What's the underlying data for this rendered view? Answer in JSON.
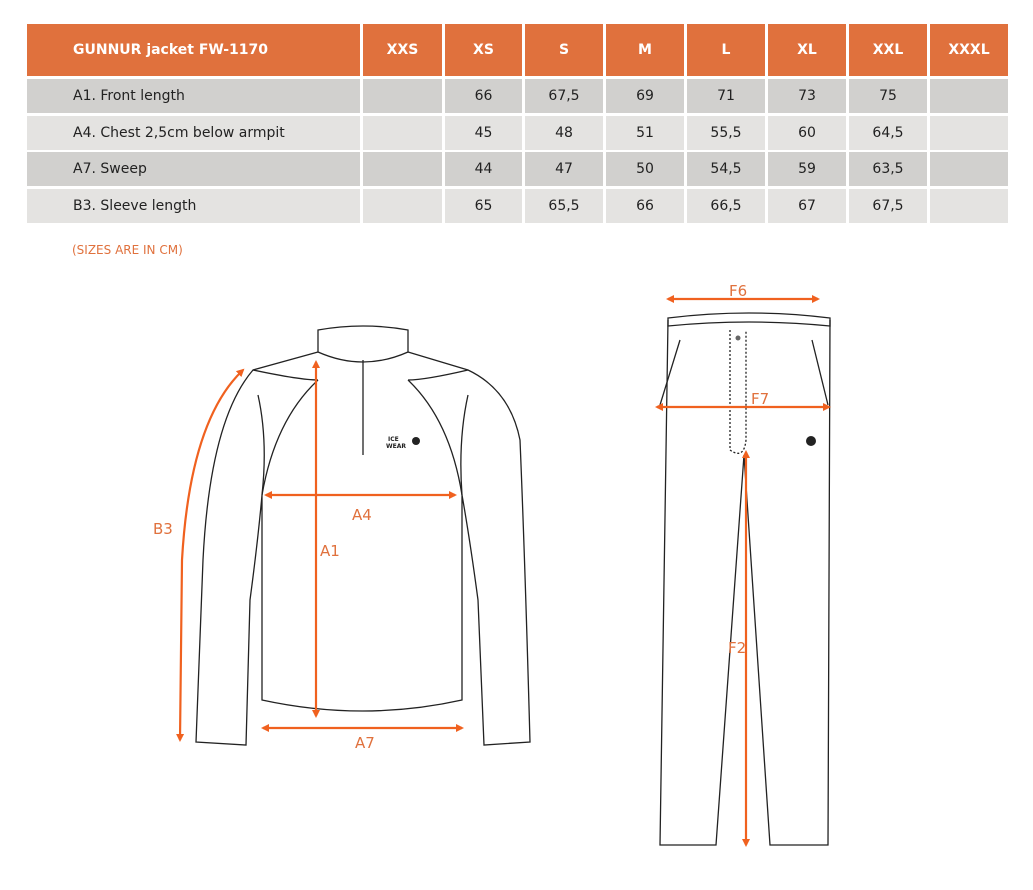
{
  "table": {
    "title": "GUNNUR jacket FW-1170",
    "sizes": [
      "XXS",
      "XS",
      "S",
      "M",
      "L",
      "XL",
      "XXL",
      "XXXL"
    ],
    "rows": [
      {
        "label": "A1. Front length",
        "values": [
          "",
          "66",
          "67,5",
          "69",
          "71",
          "73",
          "75",
          ""
        ]
      },
      {
        "label": "A4. Chest 2,5cm below armpit",
        "values": [
          "",
          "45",
          "48",
          "51",
          "55,5",
          "60",
          "64,5",
          ""
        ]
      },
      {
        "label": "A7. Sweep",
        "values": [
          "",
          "44",
          "47",
          "50",
          "54,5",
          "59",
          "63,5",
          ""
        ]
      },
      {
        "label": "B3. Sleeve length",
        "values": [
          "",
          "65",
          "65,5",
          "66",
          "66,5",
          "67",
          "67,5",
          ""
        ]
      }
    ]
  },
  "note": "(SIZES ARE IN CM)",
  "jacket_labels": {
    "b3": "B3",
    "a1": "A1",
    "a4": "A4",
    "a7": "A7",
    "logo_top": "ICE",
    "logo_bottom": "WEAR"
  },
  "pants_labels": {
    "f6": "F6",
    "f7": "F7",
    "f2": "F2"
  },
  "colors": {
    "header": "#e0713d",
    "arrow": "#f0611f",
    "row_dark": "#d1d0ce",
    "row_light": "#e4e3e1"
  }
}
